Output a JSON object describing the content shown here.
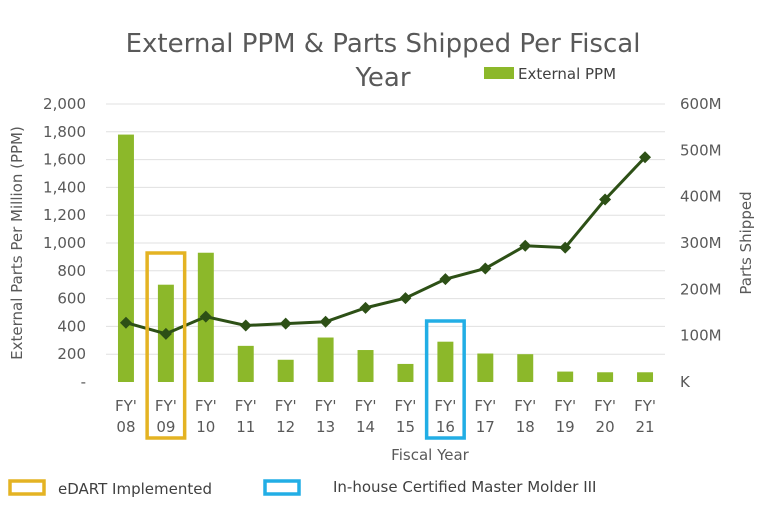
{
  "chart_data": {
    "type": "bar",
    "title_line1": "External PPM & Parts Shipped Per Fiscal",
    "title_line2": "Year",
    "xlabel": "Fiscal Year",
    "ylabel_left": "External Parts Per Million (PPM)",
    "ylabel_right": "Parts Shipped",
    "categories": [
      {
        "top": "FY'",
        "bottom": "08"
      },
      {
        "top": "FY'",
        "bottom": "09"
      },
      {
        "top": "FY'",
        "bottom": "10"
      },
      {
        "top": "FY'",
        "bottom": "11"
      },
      {
        "top": "FY'",
        "bottom": "12"
      },
      {
        "top": "FY'",
        "bottom": "13"
      },
      {
        "top": "FY'",
        "bottom": "14"
      },
      {
        "top": "FY'",
        "bottom": "15"
      },
      {
        "top": "FY'",
        "bottom": "16"
      },
      {
        "top": "FY'",
        "bottom": "17"
      },
      {
        "top": "FY'",
        "bottom": "18"
      },
      {
        "top": "FY'",
        "bottom": "19"
      },
      {
        "top": "FY'",
        "bottom": "20"
      },
      {
        "top": "FY'",
        "bottom": "21"
      }
    ],
    "left_axis": {
      "ylim": [
        0,
        2000
      ],
      "ticks": [
        0,
        200,
        400,
        600,
        800,
        1000,
        1200,
        1400,
        1600,
        1800,
        2000
      ],
      "tick_labels": [
        "-",
        "200",
        "400",
        "600",
        "800",
        "1,000",
        "1,200",
        "1,400",
        "1,600",
        "1,800",
        "2,000"
      ]
    },
    "right_axis": {
      "ylim": [
        0,
        600000000
      ],
      "ticks": [
        0,
        100000000,
        200000000,
        300000000,
        400000000,
        500000000,
        600000000
      ],
      "tick_labels": [
        "K",
        "100M",
        "200M",
        "300M",
        "400M",
        "500M",
        "600M"
      ]
    },
    "series": [
      {
        "name": "External PPM",
        "kind": "bar",
        "axis": "left",
        "color": "#8cb82a",
        "values": [
          1780,
          700,
          930,
          260,
          160,
          320,
          230,
          130,
          290,
          205,
          200,
          75,
          70,
          70
        ]
      },
      {
        "kind": "line",
        "axis": "right",
        "color": "#2d5016",
        "marker": "diamond",
        "values": [
          128000000,
          104000000,
          141000000,
          122000000,
          126000000,
          130000000,
          160000000,
          181000000,
          222000000,
          245000000,
          294000000,
          290000000,
          394000000,
          485000000
        ]
      }
    ],
    "legend": {
      "placement": "top-right",
      "entries": [
        "External PPM"
      ]
    },
    "highlights": [
      {
        "category_index": 1,
        "color": "#e4b323",
        "label": "eDART Implemented"
      },
      {
        "category_index": 8,
        "color": "#22aee5",
        "label": "In-house Certified Master Molder III"
      }
    ],
    "grid": true
  }
}
